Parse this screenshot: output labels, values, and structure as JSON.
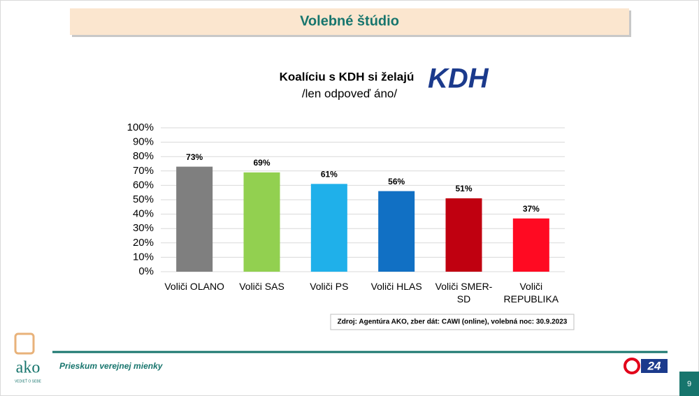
{
  "slide": {
    "header": "Volebné štúdio",
    "logo_text": "KDH",
    "source": "Zdroj: Agentúra AKO, zber dát: CAWI (online), volebná noc: 30.9.2023",
    "footer": "Prieskum verejnej mienky",
    "brand": "ako",
    "brand_tagline": "VEDIEŤ O SEBE",
    "tv_logo": "24",
    "page_number": "9"
  },
  "chart_data": {
    "type": "bar",
    "title": "Koalíciu s KDH si želajú",
    "subtitle": "/len odpoveď áno/",
    "categories": [
      "Voliči OLANO",
      "Voliči SAS",
      "Voliči PS",
      "Voliči HLAS",
      "Voliči SMER-SD",
      "Voliči REPUBLIKA"
    ],
    "values": [
      73,
      69,
      61,
      56,
      51,
      37
    ],
    "value_labels": [
      "73%",
      "69%",
      "61%",
      "56%",
      "51%",
      "37%"
    ],
    "colors": [
      "#7f7f7f",
      "#92d050",
      "#1fb0ea",
      "#1170c4",
      "#c00010",
      "#ff0a22"
    ],
    "ylim": [
      0,
      100
    ],
    "yticks": [
      {
        "value": 0,
        "label": "0%"
      },
      {
        "value": 10,
        "label": "10%"
      },
      {
        "value": 20,
        "label": "20%"
      },
      {
        "value": 30,
        "label": "30%"
      },
      {
        "value": 40,
        "label": "40%"
      },
      {
        "value": 50,
        "label": "50%"
      },
      {
        "value": 60,
        "label": "60%"
      },
      {
        "value": 70,
        "label": "70%"
      },
      {
        "value": 80,
        "label": "80%"
      },
      {
        "value": 90,
        "label": "90%"
      },
      {
        "value": 100,
        "label": "100%"
      }
    ],
    "grid": true
  }
}
